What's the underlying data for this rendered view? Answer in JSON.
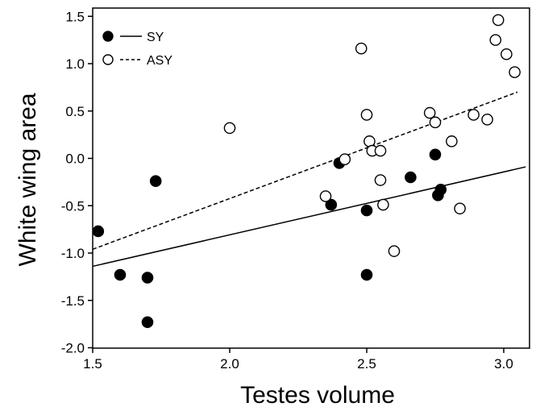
{
  "chart_data": {
    "type": "scatter",
    "title": "",
    "xlabel": "Testes volume",
    "ylabel": "White wing area",
    "xlim": [
      1.5,
      3.1
    ],
    "ylim": [
      -2.0,
      1.6
    ],
    "xticks": [
      "1.5",
      "2.0",
      "2.5",
      "3.0"
    ],
    "yticks": [
      "-2.0",
      "-1.5",
      "-1.0",
      "-0.5",
      "0.0",
      "0.5",
      "1.0",
      "1.5"
    ],
    "grid": false,
    "legend_position": "top-left",
    "series": [
      {
        "name": "SY",
        "marker": "filled-circle",
        "line_style": "solid",
        "color": "#000000",
        "points": [
          {
            "x": 1.52,
            "y": -0.77
          },
          {
            "x": 1.6,
            "y": -1.23
          },
          {
            "x": 1.7,
            "y": -1.26
          },
          {
            "x": 1.7,
            "y": -1.73
          },
          {
            "x": 1.73,
            "y": -0.24
          },
          {
            "x": 2.37,
            "y": -0.49
          },
          {
            "x": 2.4,
            "y": -0.05
          },
          {
            "x": 2.5,
            "y": -0.55
          },
          {
            "x": 2.5,
            "y": -1.23
          },
          {
            "x": 2.66,
            "y": -0.2
          },
          {
            "x": 2.75,
            "y": 0.04
          },
          {
            "x": 2.76,
            "y": -0.39
          },
          {
            "x": 2.77,
            "y": -0.33
          }
        ],
        "fit": {
          "x": [
            1.5,
            3.08
          ],
          "y": [
            -1.14,
            -0.09
          ]
        }
      },
      {
        "name": "ASY",
        "marker": "open-circle",
        "line_style": "dashed",
        "color": "#000000",
        "points": [
          {
            "x": 2.0,
            "y": 0.32
          },
          {
            "x": 2.35,
            "y": -0.4
          },
          {
            "x": 2.42,
            "y": -0.01
          },
          {
            "x": 2.48,
            "y": 1.16
          },
          {
            "x": 2.5,
            "y": 0.46
          },
          {
            "x": 2.51,
            "y": 0.18
          },
          {
            "x": 2.52,
            "y": 0.08
          },
          {
            "x": 2.55,
            "y": 0.08
          },
          {
            "x": 2.55,
            "y": -0.23
          },
          {
            "x": 2.56,
            "y": -0.49
          },
          {
            "x": 2.6,
            "y": -0.98
          },
          {
            "x": 2.73,
            "y": 0.48
          },
          {
            "x": 2.75,
            "y": 0.38
          },
          {
            "x": 2.81,
            "y": 0.18
          },
          {
            "x": 2.84,
            "y": -0.53
          },
          {
            "x": 2.89,
            "y": 0.46
          },
          {
            "x": 2.94,
            "y": 0.41
          },
          {
            "x": 2.97,
            "y": 1.25
          },
          {
            "x": 2.98,
            "y": 1.46
          },
          {
            "x": 3.01,
            "y": 1.1
          },
          {
            "x": 3.04,
            "y": 0.91
          }
        ],
        "fit": {
          "x": [
            1.5,
            3.05
          ],
          "y": [
            -0.96,
            0.7
          ]
        }
      }
    ]
  }
}
